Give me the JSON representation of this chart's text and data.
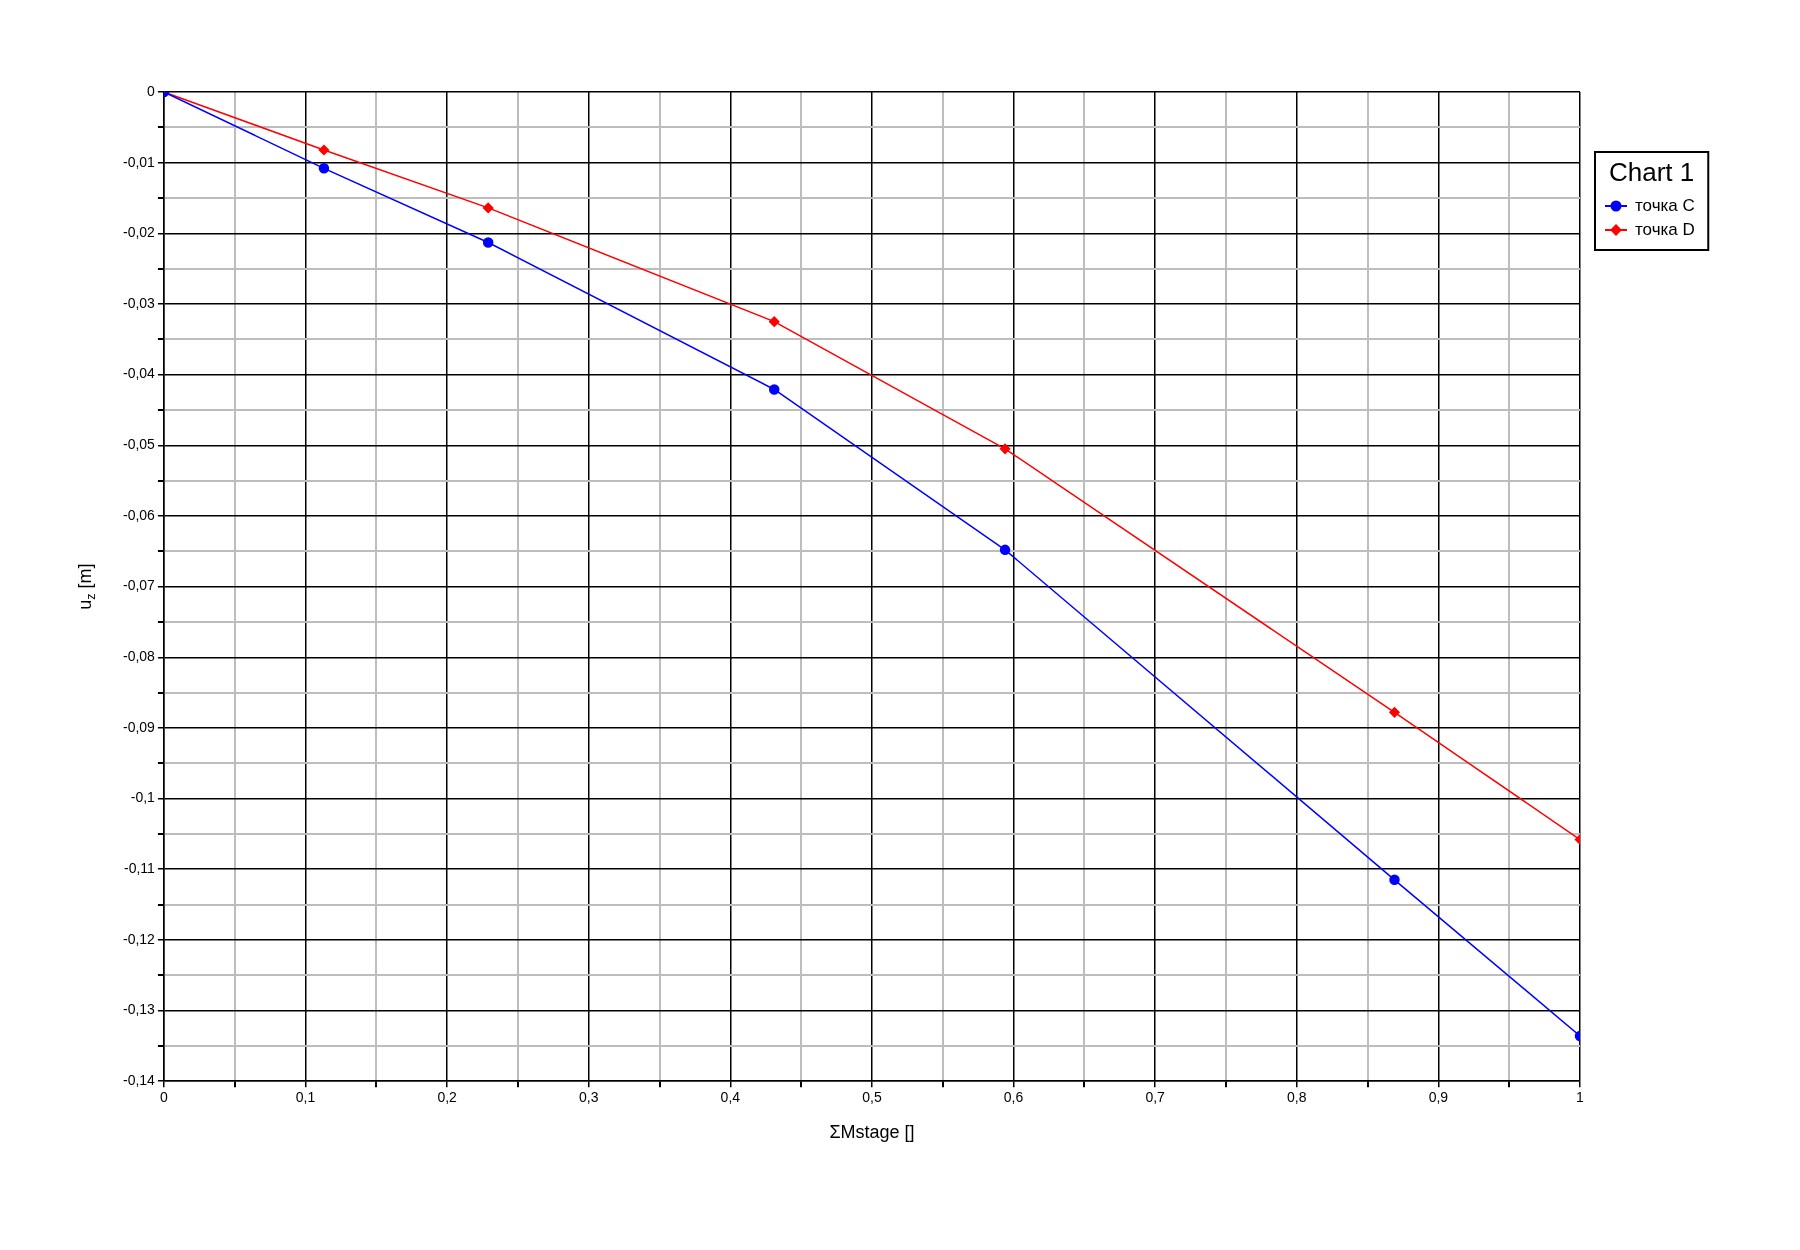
{
  "chart_data": {
    "type": "line",
    "xlabel": "ΣMstage []",
    "ylabel": "u$_{z}$ [m]",
    "legend_title": "Chart 1",
    "legend": "right",
    "grid": true,
    "line_style": "solid",
    "xlim": [
      0,
      1
    ],
    "ylim": [
      -0.14,
      0
    ],
    "xticks": [
      {
        "value": 0,
        "label": "0"
      },
      {
        "value": 0.05,
        "label": null
      },
      {
        "value": 0.1,
        "label": "0,1"
      },
      {
        "value": 0.15,
        "label": null
      },
      {
        "value": 0.2,
        "label": "0,2"
      },
      {
        "value": 0.25,
        "label": null
      },
      {
        "value": 0.3,
        "label": "0,3"
      },
      {
        "value": 0.35,
        "label": null
      },
      {
        "value": 0.4,
        "label": "0,4"
      },
      {
        "value": 0.45,
        "label": null
      },
      {
        "value": 0.5,
        "label": "0,5"
      },
      {
        "value": 0.55,
        "label": null
      },
      {
        "value": 0.6,
        "label": "0,6"
      },
      {
        "value": 0.65,
        "label": null
      },
      {
        "value": 0.7,
        "label": "0,7"
      },
      {
        "value": 0.75,
        "label": null
      },
      {
        "value": 0.8,
        "label": "0,8"
      },
      {
        "value": 0.85,
        "label": null
      },
      {
        "value": 0.9,
        "label": "0,9"
      },
      {
        "value": 0.95,
        "label": null
      },
      {
        "value": 1,
        "label": "1"
      }
    ],
    "yticks": [
      {
        "value": 0,
        "label": "0"
      },
      {
        "value": -0.005,
        "label": null
      },
      {
        "value": -0.01,
        "label": "-0,01"
      },
      {
        "value": -0.015,
        "label": null
      },
      {
        "value": -0.02,
        "label": "-0,02"
      },
      {
        "value": -0.025,
        "label": null
      },
      {
        "value": -0.03,
        "label": "-0,03"
      },
      {
        "value": -0.035,
        "label": null
      },
      {
        "value": -0.04,
        "label": "-0,04"
      },
      {
        "value": -0.045,
        "label": null
      },
      {
        "value": -0.05,
        "label": "-0,05"
      },
      {
        "value": -0.055,
        "label": null
      },
      {
        "value": -0.06,
        "label": "-0,06"
      },
      {
        "value": -0.065,
        "label": null
      },
      {
        "value": -0.07,
        "label": "-0,07"
      },
      {
        "value": -0.075,
        "label": null
      },
      {
        "value": -0.08,
        "label": "-0,08"
      },
      {
        "value": -0.085,
        "label": null
      },
      {
        "value": -0.09,
        "label": "-0,09"
      },
      {
        "value": -0.095,
        "label": null
      },
      {
        "value": -0.1,
        "label": "-0,1"
      },
      {
        "value": -0.105,
        "label": null
      },
      {
        "value": -0.11,
        "label": "-0,11"
      },
      {
        "value": -0.115,
        "label": null
      },
      {
        "value": -0.12,
        "label": "-0,12"
      },
      {
        "value": -0.125,
        "label": null
      },
      {
        "value": -0.13,
        "label": "-0,13"
      },
      {
        "value": -0.135,
        "label": null
      },
      {
        "value": -0.14,
        "label": "-0,14"
      }
    ],
    "series": [
      {
        "name": "точка C",
        "color": "#0000ff",
        "marker": "circle",
        "x": [
          0,
          0.113,
          0.229,
          0.431,
          0.594,
          0.869,
          1
        ],
        "values": [
          0,
          -0.0108,
          -0.0213,
          -0.0421,
          -0.0648,
          -0.1115,
          -0.1336
        ]
      },
      {
        "name": "точка D",
        "color": "#ff0000",
        "marker": "diamond",
        "x": [
          0,
          0.113,
          0.229,
          0.431,
          0.594,
          0.869,
          1
        ],
        "values": [
          0,
          -0.0082,
          -0.0164,
          -0.0325,
          -0.0505,
          -0.0878,
          -0.1058
        ]
      }
    ]
  }
}
